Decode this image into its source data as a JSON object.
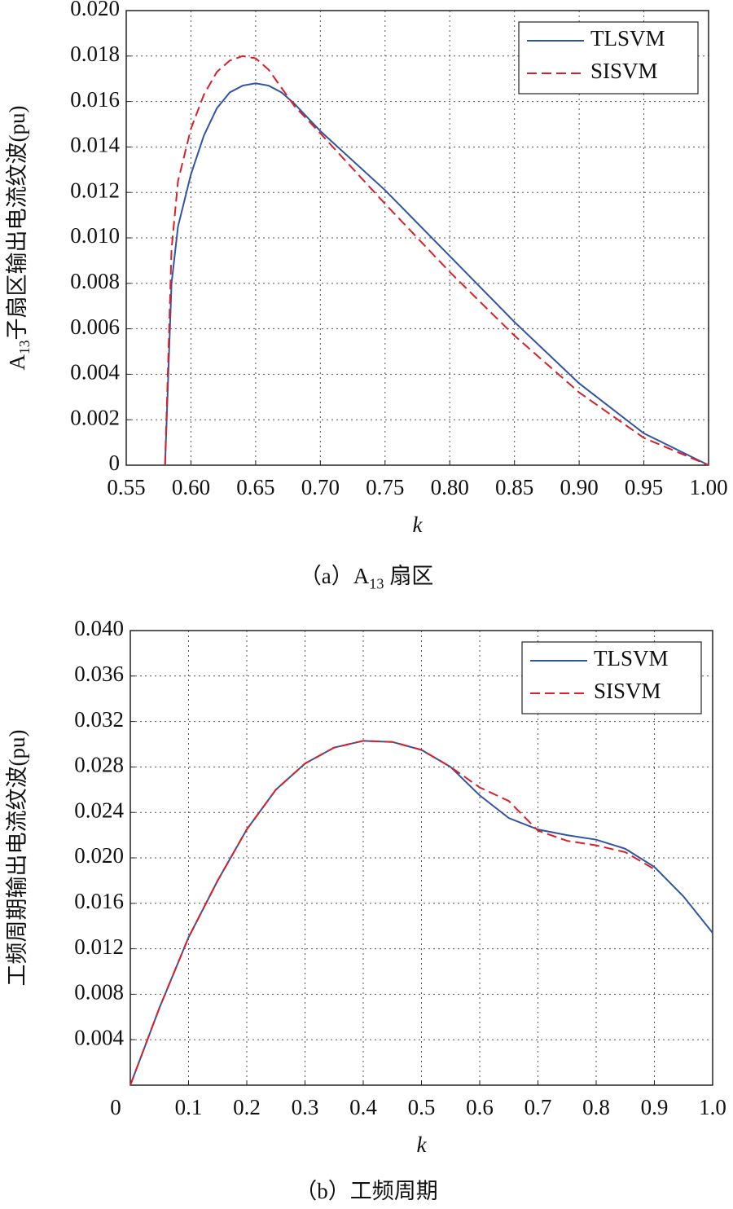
{
  "chart_data": [
    {
      "type": "line",
      "x_label": "k",
      "y_label": {
        "main": "A",
        "sub": "13",
        "rest": "子扇区输出电流纹波(pu)"
      },
      "caption": {
        "main": "（a）A",
        "sub": "13",
        "rest": " 扇区"
      },
      "x": [
        0.58,
        0.585,
        0.59,
        0.6,
        0.61,
        0.62,
        0.63,
        0.64,
        0.65,
        0.66,
        0.67,
        0.68,
        0.7,
        0.75,
        0.8,
        0.85,
        0.9,
        0.95,
        1.0
      ],
      "series": [
        {
          "name": "TLSVM",
          "color": "#2f55a4",
          "dash": false,
          "values": [
            0,
            0.008,
            0.0105,
            0.0128,
            0.0145,
            0.0157,
            0.0164,
            0.0167,
            0.0168,
            0.0167,
            0.0164,
            0.0159,
            0.0147,
            0.0121,
            0.0092,
            0.0063,
            0.0036,
            0.0014,
            0
          ]
        },
        {
          "name": "SISVM",
          "color": "#d9202a",
          "dash": true,
          "values": [
            0,
            0.0095,
            0.0125,
            0.0148,
            0.0163,
            0.0173,
            0.0178,
            0.018,
            0.0179,
            0.0174,
            0.0166,
            0.0158,
            0.0146,
            0.0115,
            0.0085,
            0.0057,
            0.0032,
            0.0012,
            0
          ]
        }
      ],
      "xlim": [
        0.55,
        1.0
      ],
      "ylim": [
        0,
        0.02
      ],
      "xticks": [
        {
          "value": 0.55,
          "label": "0.55"
        },
        {
          "value": 0.6,
          "label": "0.60"
        },
        {
          "value": 0.65,
          "label": "0.65"
        },
        {
          "value": 0.7,
          "label": "0.70"
        },
        {
          "value": 0.75,
          "label": "0.75"
        },
        {
          "value": 0.8,
          "label": "0.80"
        },
        {
          "value": 0.85,
          "label": "0.85"
        },
        {
          "value": 0.9,
          "label": "0.90"
        },
        {
          "value": 0.95,
          "label": "0.95"
        },
        {
          "value": 1.0,
          "label": "1.00"
        }
      ],
      "yticks": [
        0,
        {
          "value": 0.002,
          "label": "0.002"
        },
        {
          "value": 0.004,
          "label": "0.004"
        },
        {
          "value": 0.006,
          "label": "0.006"
        },
        {
          "value": 0.008,
          "label": "0.008"
        },
        {
          "value": 0.01,
          "label": "0.010"
        },
        {
          "value": 0.012,
          "label": "0.012"
        },
        {
          "value": 0.014,
          "label": "0.014"
        },
        {
          "value": 0.016,
          "label": "0.016"
        },
        {
          "value": 0.018,
          "label": "0.018"
        },
        {
          "value": 0.02,
          "label": "0.020"
        }
      ],
      "grid": true,
      "legend": "top-right"
    },
    {
      "type": "line",
      "x_label": "k",
      "y_label": "工频周期输出电流纹波(pu)",
      "caption": "（b）工频周期",
      "x": [
        0,
        0.05,
        0.1,
        0.15,
        0.2,
        0.25,
        0.3,
        0.35,
        0.4,
        0.45,
        0.5,
        0.55,
        0.6,
        0.65,
        0.7,
        0.75,
        0.8,
        0.85,
        0.9,
        0.95,
        1.0
      ],
      "series": [
        {
          "name": "TLSVM",
          "color": "#2f55a4",
          "dash": false,
          "values": [
            0,
            0.0068,
            0.013,
            0.018,
            0.0225,
            0.026,
            0.0283,
            0.0297,
            0.0303,
            0.0302,
            0.0295,
            0.028,
            0.0255,
            0.0235,
            0.0225,
            0.022,
            0.0216,
            0.0208,
            0.0192,
            0.0166,
            0.0134
          ]
        },
        {
          "name": "SISVM",
          "color": "#d9202a",
          "dash": true,
          "values": [
            0,
            0.0068,
            0.013,
            0.018,
            0.0225,
            0.026,
            0.0283,
            0.0297,
            0.0303,
            0.0302,
            0.0295,
            0.028,
            0.0262,
            0.025,
            0.0224,
            0.0215,
            0.0211,
            0.0205,
            0.019,
            null,
            null
          ]
        }
      ],
      "xlim": [
        0,
        1.0
      ],
      "ylim": [
        0,
        0.04
      ],
      "xticks": [
        0,
        0.1,
        0.2,
        0.3,
        0.4,
        0.5,
        0.6,
        0.7,
        0.8,
        0.9,
        {
          "value": 1.0,
          "label": "1.0"
        }
      ],
      "yticks": [
        {
          "value": 0.004,
          "label": "0.004"
        },
        {
          "value": 0.008,
          "label": "0.008"
        },
        {
          "value": 0.012,
          "label": "0.012"
        },
        {
          "value": 0.016,
          "label": "0.016"
        },
        {
          "value": 0.02,
          "label": "0.020"
        },
        {
          "value": 0.024,
          "label": "0.024"
        },
        {
          "value": 0.028,
          "label": "0.028"
        },
        {
          "value": 0.032,
          "label": "0.032"
        },
        {
          "value": 0.036,
          "label": "0.036"
        },
        {
          "value": 0.04,
          "label": "0.040"
        }
      ],
      "grid": true,
      "legend": "top-right"
    }
  ]
}
